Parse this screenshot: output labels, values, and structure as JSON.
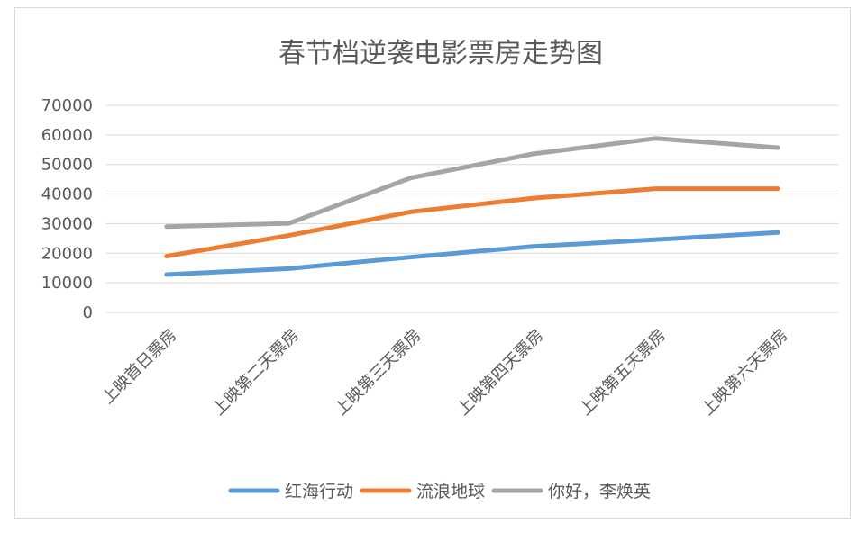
{
  "chart_data": {
    "type": "line",
    "title": "春节档逆袭电影票房走势图",
    "categories": [
      "上映首日票房",
      "上映第二天票房",
      "上映第三天票房",
      "上映第四天票房",
      "上映第五天票房",
      "上映第六天票房"
    ],
    "ylim": [
      0,
      70000
    ],
    "yticks": [
      0,
      10000,
      20000,
      30000,
      40000,
      50000,
      60000,
      70000
    ],
    "grid": true,
    "legend_position": "bottom",
    "series": [
      {
        "name": "红海行动",
        "color": "#5b9bd5",
        "values": [
          12800,
          14800,
          18700,
          22300,
          24600,
          27000
        ]
      },
      {
        "name": "流浪地球",
        "color": "#ed7d31",
        "values": [
          19000,
          26000,
          34000,
          38600,
          41800,
          41800
        ]
      },
      {
        "name": "你好，李焕英",
        "color": "#a5a5a5",
        "values": [
          29000,
          30100,
          45500,
          53600,
          58800,
          55700
        ]
      }
    ]
  }
}
